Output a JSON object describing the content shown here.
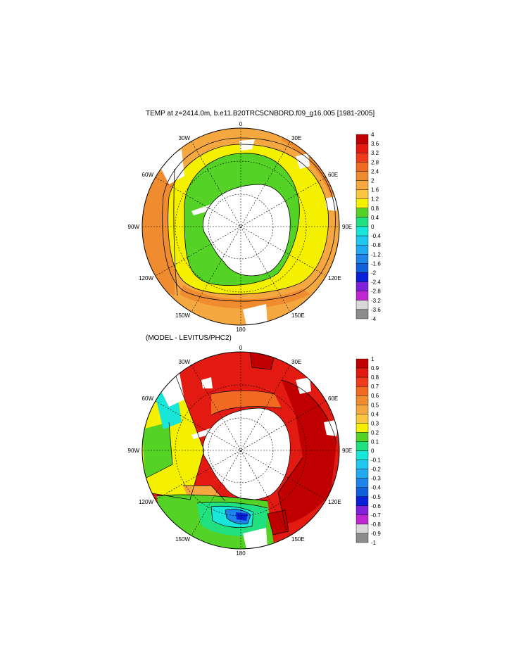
{
  "top_panel": {
    "title": "TEMP at z=2414.0m, b.e11.B20TRC5CNBDRD.f09_g16.005 [1981-2005]",
    "lon_labels": {
      "n": "0",
      "ne": "30E",
      "e1": "60E",
      "e": "90E",
      "se1": "120E",
      "se": "150E",
      "s": "180",
      "sw": "150W",
      "w1": "120W",
      "w": "90W",
      "nw1": "60W",
      "nw": "30W"
    },
    "colorbar": {
      "labels": [
        "4",
        "3.6",
        "3.2",
        "2.8",
        "2.4",
        "2",
        "1.6",
        "1.2",
        "0.8",
        "0.4",
        "0",
        "-0.4",
        "-0.8",
        "-1.2",
        "-1.6",
        "-2",
        "-2.4",
        "-2.8",
        "-3.2",
        "-3.6",
        "-4"
      ],
      "colors": [
        "#c00000",
        "#e21a12",
        "#f03c1c",
        "#f06a22",
        "#f08c30",
        "#f5a840",
        "#f8c640",
        "#f4f000",
        "#54d226",
        "#20e080",
        "#18e6d8",
        "#20c8f0",
        "#22aaf0",
        "#1e84e8",
        "#1060dc",
        "#0a20d8",
        "#8020d8",
        "#c026d0",
        "#d8d8d8",
        "#8c8c8c"
      ]
    }
  },
  "bottom_panel": {
    "title": "(MODEL - LEVITUS/PHC2)",
    "lon_labels": {
      "n": "0",
      "ne": "30E",
      "e1": "60E",
      "e": "90E",
      "se1": "120E",
      "se": "150E",
      "s": "180",
      "sw": "150W",
      "w1": "120W",
      "w": "90W",
      "nw1": "60W",
      "nw": "30W"
    },
    "colorbar": {
      "labels": [
        "1",
        "0.9",
        "0.8",
        "0.7",
        "0.6",
        "0.5",
        "0.4",
        "0.3",
        "0.2",
        "0.1",
        "0",
        "-0.1",
        "-0.2",
        "-0.3",
        "-0.4",
        "-0.5",
        "-0.6",
        "-0.7",
        "-0.8",
        "-0.9",
        "-1"
      ],
      "colors": [
        "#c00000",
        "#e21a12",
        "#f03c1c",
        "#f06a22",
        "#f08c30",
        "#f5a840",
        "#f8c640",
        "#f4f000",
        "#54d226",
        "#20e080",
        "#18e6d8",
        "#20c8f0",
        "#22aaf0",
        "#1e84e8",
        "#1060dc",
        "#0a20d8",
        "#8020d8",
        "#c026d0",
        "#d8d8d8",
        "#8c8c8c"
      ]
    }
  }
}
